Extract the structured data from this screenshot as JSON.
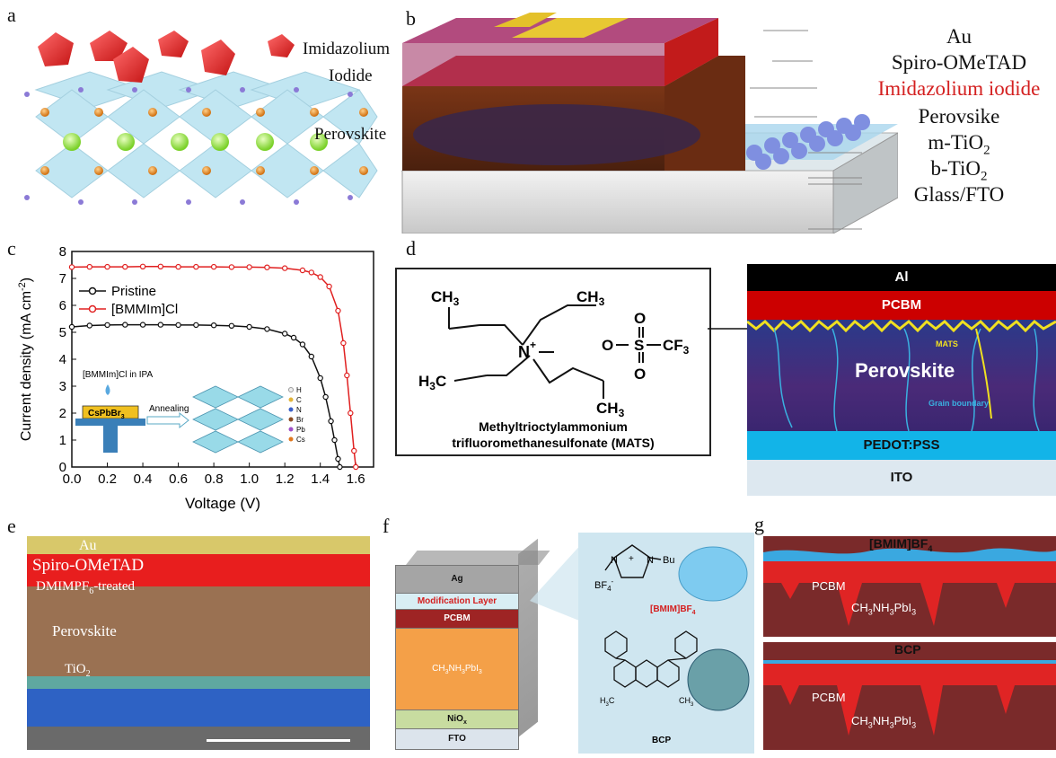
{
  "panels": {
    "a": {
      "label": "a",
      "imidazolium": "Imidazolium",
      "iodide": "Iodide",
      "perovskite": "Perovskite"
    },
    "b": {
      "label": "b",
      "layers": [
        "Au",
        "Spiro-OMeTAD",
        "Imidazolium iodide",
        "Perovsike",
        "m-TiO",
        "b-TiO",
        "Glass/FTO"
      ],
      "sub2": "2",
      "highlight_color": "#d42020"
    },
    "c": {
      "label": "c",
      "inset_solution": "[BMMIm]Cl in IPA",
      "inset_substrate": "CsPbBr",
      "inset_sub3": "3",
      "inset_annealing": "Annealing",
      "inset_legend": [
        "H",
        "C",
        "N",
        "Br",
        "Pb",
        "Cs"
      ]
    },
    "d": {
      "label": "d",
      "molecule_name_1": "Methyltrioctylammonium",
      "molecule_name_2": "trifluoromethanesulfonate (MATS)",
      "ch3_top_left": "CH",
      "ch3_top_right": "CH",
      "h3c_bottom": "H",
      "ch3_bottom_right": "CH",
      "sub3": "3",
      "n_plus": "N",
      "plus": "+",
      "sulfonate_o": "O",
      "s": "S",
      "cf3": "CF",
      "layers": {
        "al": "Al",
        "pcbm": "PCBM",
        "perovskite": "Perovskite",
        "pedot": "PEDOT:PSS",
        "ito": "ITO"
      },
      "mats_tag": "MATS",
      "grain_tag": "Grain boundary"
    },
    "e": {
      "label": "e",
      "au": "Au",
      "spiro": "Spiro-OMeTAD",
      "dmimpf_1": "DMIMPF",
      "dmimpf_sub": "6",
      "dmimpf_2": "-treated",
      "perovskite": "Perovskite",
      "tio2": "TiO",
      "sub2": "2"
    },
    "f": {
      "label": "f",
      "layers": {
        "ag": "Ag",
        "modification": "Modification Layer",
        "pcbm": "PCBM",
        "absorber": "CH",
        "absorber_rest": "NH",
        "absorber_end": "PbI",
        "niox": "NiO",
        "niox_sub": "x",
        "fto": "FTO"
      },
      "bmim_n": "N",
      "bmim_bu": "Bu",
      "bf4": "BF",
      "bf4_sub": "4",
      "bmim_label": "[BMIM]BF",
      "bcp_label": "BCP",
      "h3c": "H",
      "ch3": "CH",
      "sub3": "3"
    },
    "g": {
      "label": "g",
      "top_tag": "[BMIM]BF",
      "top_tag_sub": "4",
      "bottom_tag": "BCP",
      "pcbm": "PCBM",
      "perovskite": "CH",
      "perovskite_mid": "NH",
      "perovskite_end": "PbI",
      "sub3": "3"
    }
  },
  "chart_data": {
    "type": "line",
    "title": "",
    "xlabel": "Voltage (V)",
    "ylabel": "Current density (mA cm",
    "ylabel_sup": "-2",
    "ylabel_close": ")",
    "xlim": [
      0.0,
      1.7
    ],
    "ylim": [
      0,
      8
    ],
    "x_ticks": [
      0.0,
      0.2,
      0.4,
      0.6,
      0.8,
      1.0,
      1.2,
      1.4,
      1.6
    ],
    "x_tick_labels": [
      "0.0",
      "0.2",
      "0.4",
      "0.6",
      "0.8",
      "1.0",
      "1.2",
      "1.4",
      "1.6"
    ],
    "y_ticks": [
      0,
      1,
      2,
      3,
      4,
      5,
      6,
      7,
      8
    ],
    "y_tick_labels": [
      "0",
      "1",
      "2",
      "3",
      "4",
      "5",
      "6",
      "7",
      "8"
    ],
    "grid": false,
    "legend": "top-left",
    "series": [
      {
        "name": "Pristine",
        "color": "#111111",
        "marker": "circle",
        "x": [
          0.0,
          0.1,
          0.2,
          0.3,
          0.4,
          0.5,
          0.6,
          0.7,
          0.8,
          0.9,
          1.0,
          1.1,
          1.2,
          1.25,
          1.3,
          1.35,
          1.4,
          1.43,
          1.46,
          1.48,
          1.5,
          1.51
        ],
        "y": [
          5.2,
          5.25,
          5.27,
          5.28,
          5.28,
          5.28,
          5.27,
          5.27,
          5.26,
          5.24,
          5.2,
          5.12,
          4.95,
          4.8,
          4.55,
          4.1,
          3.3,
          2.6,
          1.7,
          1.0,
          0.3,
          0.0
        ]
      },
      {
        "name": "[BMMIm]Cl",
        "color": "#e02020",
        "marker": "circle",
        "x": [
          0.0,
          0.1,
          0.2,
          0.3,
          0.4,
          0.5,
          0.6,
          0.7,
          0.8,
          0.9,
          1.0,
          1.1,
          1.2,
          1.3,
          1.35,
          1.4,
          1.45,
          1.5,
          1.53,
          1.55,
          1.57,
          1.59,
          1.6
        ],
        "y": [
          7.42,
          7.43,
          7.43,
          7.43,
          7.44,
          7.44,
          7.43,
          7.43,
          7.43,
          7.42,
          7.42,
          7.41,
          7.38,
          7.3,
          7.22,
          7.05,
          6.7,
          5.8,
          4.6,
          3.4,
          2.0,
          0.6,
          0.0
        ]
      }
    ]
  }
}
